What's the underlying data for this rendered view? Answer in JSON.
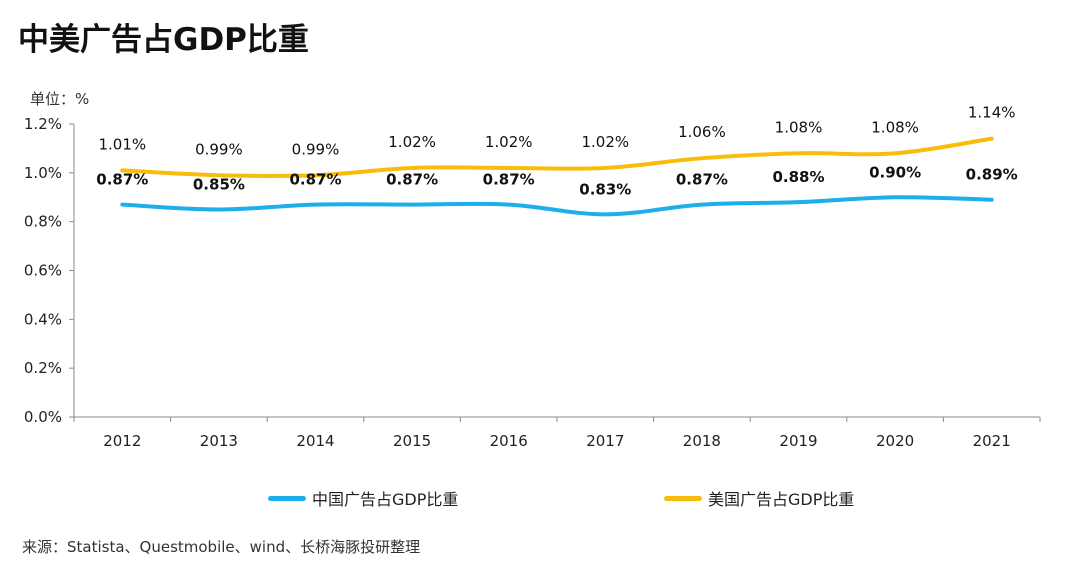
{
  "title": "中美广告占GDP比重",
  "unit_label": "单位：%",
  "source": "来源：Statista、Questmobile、wind、长桥海豚投研整理",
  "colors": {
    "china": "#1EAEEB",
    "usa": "#F8BD0B",
    "axis": "#8A8A8A"
  },
  "chart_data": {
    "type": "line",
    "title": "中美广告占GDP比重",
    "xlabel": "",
    "ylabel": "单位：%",
    "x": [
      "2012",
      "2013",
      "2014",
      "2015",
      "2016",
      "2017",
      "2018",
      "2019",
      "2020",
      "2021"
    ],
    "ylim": [
      0,
      1.2
    ],
    "yticks": [
      0,
      0.2,
      0.4,
      0.6,
      0.8,
      1.0,
      1.2
    ],
    "ytick_labels": [
      "0.0%",
      "0.2%",
      "0.4%",
      "0.6%",
      "0.8%",
      "1.0%",
      "1.2%"
    ],
    "grid": false,
    "legend_position": "bottom",
    "series": [
      {
        "name": "中国广告占GDP比重",
        "values": [
          0.87,
          0.85,
          0.87,
          0.87,
          0.87,
          0.83,
          0.87,
          0.88,
          0.9,
          0.89
        ],
        "labels": [
          "0.87%",
          "0.85%",
          "0.87%",
          "0.87%",
          "0.87%",
          "0.83%",
          "0.87%",
          "0.88%",
          "0.90%",
          "0.89%"
        ]
      },
      {
        "name": "美国广告占GDP比重",
        "values": [
          1.01,
          0.99,
          0.99,
          1.02,
          1.02,
          1.02,
          1.06,
          1.08,
          1.08,
          1.14
        ],
        "labels": [
          "1.01%",
          "0.99%",
          "0.99%",
          "1.02%",
          "1.02%",
          "1.02%",
          "1.06%",
          "1.08%",
          "1.08%",
          "1.14%"
        ]
      }
    ]
  }
}
